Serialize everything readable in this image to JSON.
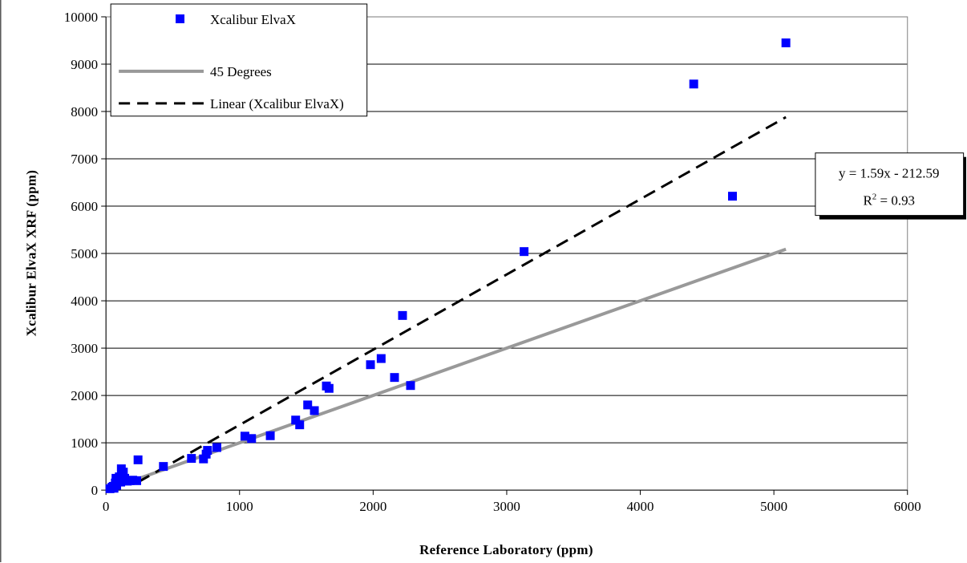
{
  "chart_data": {
    "type": "scatter",
    "xlabel": "Reference Laboratory (ppm)",
    "ylabel": "Xcalibur ElvaX XRF (ppm)",
    "xlim": [
      0,
      6000
    ],
    "ylim": [
      0,
      10000
    ],
    "x_ticks": [
      "0",
      "1000",
      "2000",
      "3000",
      "4000",
      "5000",
      "6000"
    ],
    "y_ticks": [
      "0",
      "1000",
      "2000",
      "3000",
      "4000",
      "5000",
      "6000",
      "7000",
      "8000",
      "9000",
      "10000"
    ],
    "grid": "horizontal major gridlines",
    "legend_position": "top-left",
    "colors": {
      "points": "#0000ff",
      "reference_line": "#999999",
      "fit_line": "#000000"
    },
    "series": [
      {
        "name": "Xcalibur ElvaX",
        "kind": "markers",
        "points": [
          [
            30,
            30
          ],
          [
            45,
            60
          ],
          [
            55,
            80
          ],
          [
            60,
            40
          ],
          [
            70,
            150
          ],
          [
            75,
            250
          ],
          [
            80,
            100
          ],
          [
            90,
            200
          ],
          [
            100,
            280
          ],
          [
            110,
            170
          ],
          [
            115,
            450
          ],
          [
            120,
            200
          ],
          [
            130,
            380
          ],
          [
            140,
            250
          ],
          [
            150,
            200
          ],
          [
            160,
            190
          ],
          [
            180,
            200
          ],
          [
            200,
            210
          ],
          [
            230,
            200
          ],
          [
            240,
            640
          ],
          [
            430,
            500
          ],
          [
            640,
            670
          ],
          [
            730,
            660
          ],
          [
            750,
            760
          ],
          [
            760,
            840
          ],
          [
            830,
            900
          ],
          [
            1040,
            1140
          ],
          [
            1090,
            1090
          ],
          [
            1230,
            1150
          ],
          [
            1420,
            1480
          ],
          [
            1450,
            1380
          ],
          [
            1510,
            1800
          ],
          [
            1560,
            1680
          ],
          [
            1650,
            2200
          ],
          [
            1670,
            2150
          ],
          [
            1980,
            2650
          ],
          [
            2060,
            2780
          ],
          [
            2160,
            2380
          ],
          [
            2220,
            3690
          ],
          [
            2280,
            2210
          ],
          [
            3130,
            5040
          ],
          [
            4400,
            8580
          ],
          [
            4690,
            6210
          ],
          [
            5090,
            9450
          ]
        ]
      },
      {
        "name": "45 Degrees",
        "kind": "line",
        "x": [
          30,
          5090
        ],
        "y": [
          30,
          5090
        ]
      },
      {
        "name": "Linear (Xcalibur ElvaX)",
        "kind": "dashed-line",
        "x": [
          240,
          5090
        ],
        "y": [
          169,
          7880
        ]
      }
    ],
    "annotation": {
      "equation": "y = 1.59x - 212.59",
      "r2_label": "R",
      "r2_sup": "2",
      "r2_value": " = 0.93"
    }
  }
}
